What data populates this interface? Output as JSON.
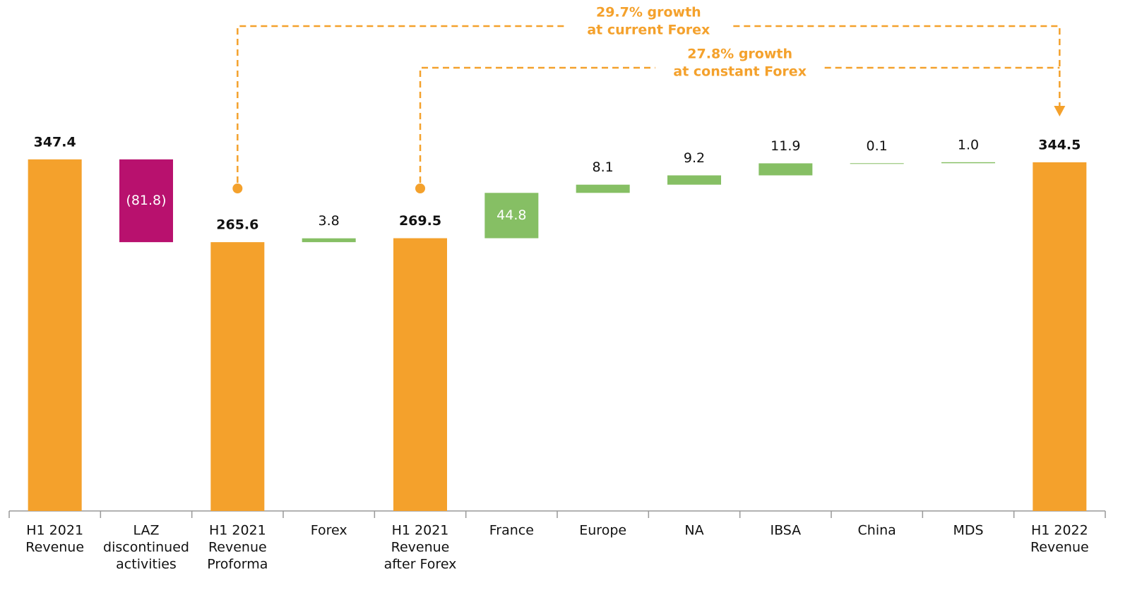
{
  "chart_data": {
    "type": "waterfall",
    "categories": [
      [
        "H1 2021",
        "Revenue"
      ],
      [
        "LAZ",
        "discontinued",
        "activities"
      ],
      [
        "H1 2021",
        "Revenue",
        "Proforma"
      ],
      [
        "Forex"
      ],
      [
        "H1 2021",
        "Revenue",
        "after Forex"
      ],
      [
        "France"
      ],
      [
        "Europe"
      ],
      [
        "NA"
      ],
      [
        "IBSA"
      ],
      [
        "China"
      ],
      [
        "MDS"
      ],
      [
        "H1 2022",
        "Revenue"
      ]
    ],
    "values": [
      347.4,
      -81.8,
      265.6,
      3.8,
      269.5,
      44.8,
      8.1,
      9.2,
      11.9,
      0.1,
      1.0,
      344.5
    ],
    "value_labels": [
      "347.4",
      "(81.8)",
      "265.6",
      "3.8",
      "269.5",
      "44.8",
      "8.1",
      "9.2",
      "11.9",
      "0.1",
      "1.0",
      "344.5"
    ],
    "kinds": [
      "total",
      "delta",
      "total",
      "delta",
      "total",
      "delta",
      "delta",
      "delta",
      "delta",
      "delta",
      "delta",
      "total"
    ],
    "colors": {
      "total": "#F4A12C",
      "increase": "#86BF64",
      "decrease": "#B8116E"
    },
    "ylim": [
      0,
      500
    ],
    "annotations": [
      {
        "text": [
          "29.7% growth",
          "at current Forex"
        ],
        "from": 2,
        "to": 11,
        "arrow": true,
        "color": "#F4A12C"
      },
      {
        "text": [
          "27.8% growth",
          "at constant Forex"
        ],
        "from": 4,
        "to": 11,
        "arrow": false,
        "color": "#F4A12C"
      }
    ]
  }
}
